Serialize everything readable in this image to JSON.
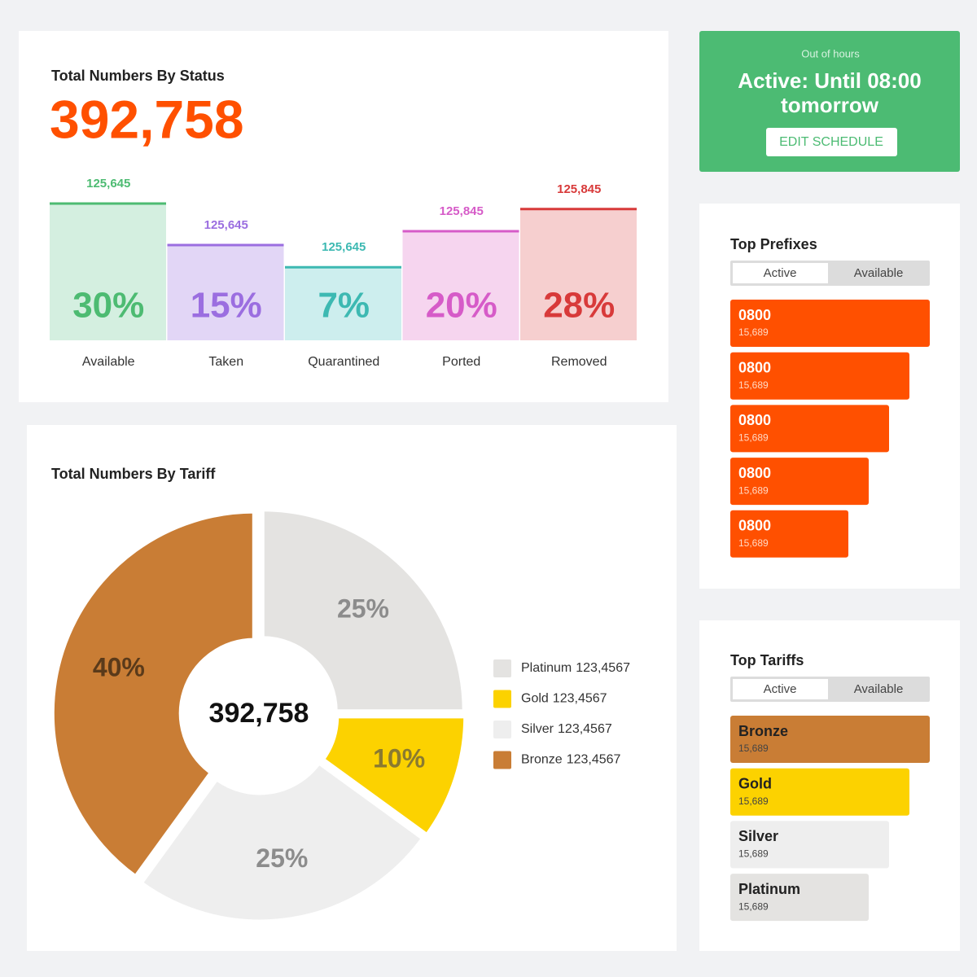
{
  "schedule": {
    "caption": "Out of hours",
    "status": "Active: Until 08:00 tomorrow",
    "button": "EDIT SCHEDULE"
  },
  "chart_data": [
    {
      "type": "bar",
      "title": "Total Numbers By Status",
      "total": "392,758",
      "categories": [
        "Available",
        "Taken",
        "Quarantined",
        "Ported",
        "Removed"
      ],
      "values": [
        30,
        15,
        7,
        20,
        28
      ],
      "value_labels": [
        "30%",
        "15%",
        "7%",
        "20%",
        "28%"
      ],
      "counts": [
        "125,645",
        "125,645",
        "125,645",
        "125,845",
        "125,845"
      ],
      "colors": [
        "#4dbb72",
        "#9b6ee0",
        "#3db9b2",
        "#d65bc8",
        "#d83a3a"
      ],
      "fill_colors": [
        "#d4efe0",
        "#e2d6f6",
        "#cdeeee",
        "#f6d5ef",
        "#f6cfcf"
      ]
    },
    {
      "type": "donut",
      "title": "Total Numbers By Tariff",
      "center_label": "392,758",
      "categories": [
        "Platinum",
        "Gold",
        "Silver",
        "Bronze"
      ],
      "values": [
        25,
        10,
        25,
        40
      ],
      "value_labels": [
        "25%",
        "10%",
        "25%",
        "40%"
      ],
      "legend_values": [
        "123,4567",
        "123,4567",
        "123,4567",
        "123,4567"
      ],
      "colors": [
        "#e4e3e1",
        "#fcd200",
        "#eeeeee",
        "#c97d35"
      ],
      "label_colors": [
        "#8c8c8c",
        "#8a7a30",
        "#8c8c8c",
        "#5a3a1a"
      ]
    }
  ],
  "top_prefixes": {
    "title": "Top Prefixes",
    "tabs": [
      "Active",
      "Available"
    ],
    "items": [
      {
        "label": "0800",
        "value": "15,689",
        "color": "#ff5000"
      },
      {
        "label": "0800",
        "value": "15,689",
        "color": "#ff5000"
      },
      {
        "label": "0800",
        "value": "15,689",
        "color": "#ff5000"
      },
      {
        "label": "0800",
        "value": "15,689",
        "color": "#ff5000"
      },
      {
        "label": "0800",
        "value": "15,689",
        "color": "#ff5000"
      }
    ]
  },
  "top_tariffs": {
    "title": "Top Tariffs",
    "tabs": [
      "Active",
      "Available"
    ],
    "items": [
      {
        "label": "Bronze",
        "value": "15,689",
        "color": "#c97d35"
      },
      {
        "label": "Gold",
        "value": "15,689",
        "color": "#fcd200"
      },
      {
        "label": "Silver",
        "value": "15,689",
        "color": "#eeeeee"
      },
      {
        "label": "Platinum",
        "value": "15,689",
        "color": "#e4e3e1"
      }
    ]
  }
}
